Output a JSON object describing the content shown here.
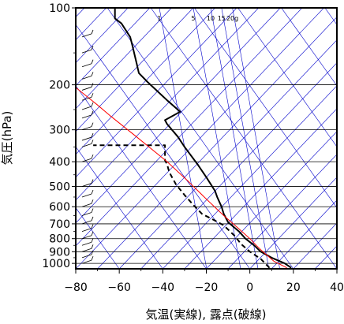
{
  "chart_data": {
    "type": "line",
    "xlabel": "気温(実線), 露点(破線)",
    "ylabel": "気圧(hPa)",
    "xlim": [
      -80,
      40
    ],
    "ylim": [
      1050,
      100
    ],
    "y_scale": "log",
    "x_ticks": [
      "−80",
      "−60",
      "−40",
      "−20",
      "0",
      "20",
      "40"
    ],
    "x_tick_values": [
      -80,
      -60,
      -40,
      -20,
      0,
      20,
      40
    ],
    "y_ticks": [
      "100",
      "200",
      "300",
      "400",
      "500",
      "600",
      "700",
      "800",
      "900",
      "1000"
    ],
    "y_tick_values": [
      100,
      200,
      300,
      400,
      500,
      600,
      700,
      800,
      900,
      1000
    ],
    "mixing_ratio_labels": [
      "1",
      "5",
      "10",
      "15",
      "20g"
    ],
    "mixing_ratio_label_x": [
      -41.6,
      -26,
      -18,
      -13,
      -8
    ],
    "colors": {
      "temperature": "#000000",
      "dewpoint": "#000000",
      "parcel": "#ff0000",
      "isotherm": "#0000cc",
      "grid": "#000000"
    },
    "series": [
      {
        "role": "temperature",
        "style": "solid",
        "points": [
          [
            19,
            1040
          ],
          [
            16,
            1000
          ],
          [
            10,
            950
          ],
          [
            5,
            900
          ],
          [
            2,
            850
          ],
          [
            -2,
            800
          ],
          [
            -5,
            750
          ],
          [
            -10,
            690
          ],
          [
            -12,
            640
          ],
          [
            -13,
            600
          ],
          [
            -15,
            550
          ],
          [
            -16,
            520
          ],
          [
            -20,
            460
          ],
          [
            -24,
            410
          ],
          [
            -30,
            350
          ],
          [
            -33,
            320
          ],
          [
            -38,
            285
          ],
          [
            -39,
            275
          ],
          [
            -32,
            255
          ],
          [
            -38,
            230
          ],
          [
            -43,
            210
          ],
          [
            -47,
            195
          ],
          [
            -51,
            180
          ],
          [
            -52,
            165
          ],
          [
            -54,
            140
          ],
          [
            -55,
            130
          ],
          [
            -59,
            115
          ],
          [
            -62,
            110
          ],
          [
            -62,
            100
          ]
        ]
      },
      {
        "role": "dewpoint",
        "style": "dashed",
        "points": [
          [
            9,
            1040
          ],
          [
            5,
            960
          ],
          [
            0,
            900
          ],
          [
            -4,
            840
          ],
          [
            -7,
            780
          ],
          [
            -12,
            710
          ],
          [
            -16,
            680
          ],
          [
            -22,
            640
          ],
          [
            -26,
            590
          ],
          [
            -30,
            540
          ],
          [
            -34,
            490
          ],
          [
            -37,
            440
          ],
          [
            -38,
            410
          ],
          [
            -39,
            395
          ],
          [
            -39,
            345
          ],
          [
            -72,
            345
          ]
        ]
      },
      {
        "role": "parcel",
        "style": "solid",
        "points": [
          [
            17,
            1040
          ],
          [
            11,
            980
          ],
          [
            6,
            900
          ],
          [
            3,
            850
          ],
          [
            0,
            800
          ],
          [
            -6,
            720
          ],
          [
            -12,
            650
          ],
          [
            -20,
            560
          ],
          [
            -28,
            480
          ],
          [
            -38,
            400
          ],
          [
            -52,
            320
          ],
          [
            -64,
            265
          ],
          [
            -70,
            240
          ],
          [
            -80,
            205
          ]
        ]
      }
    ],
    "wind_barbs_present": true
  }
}
